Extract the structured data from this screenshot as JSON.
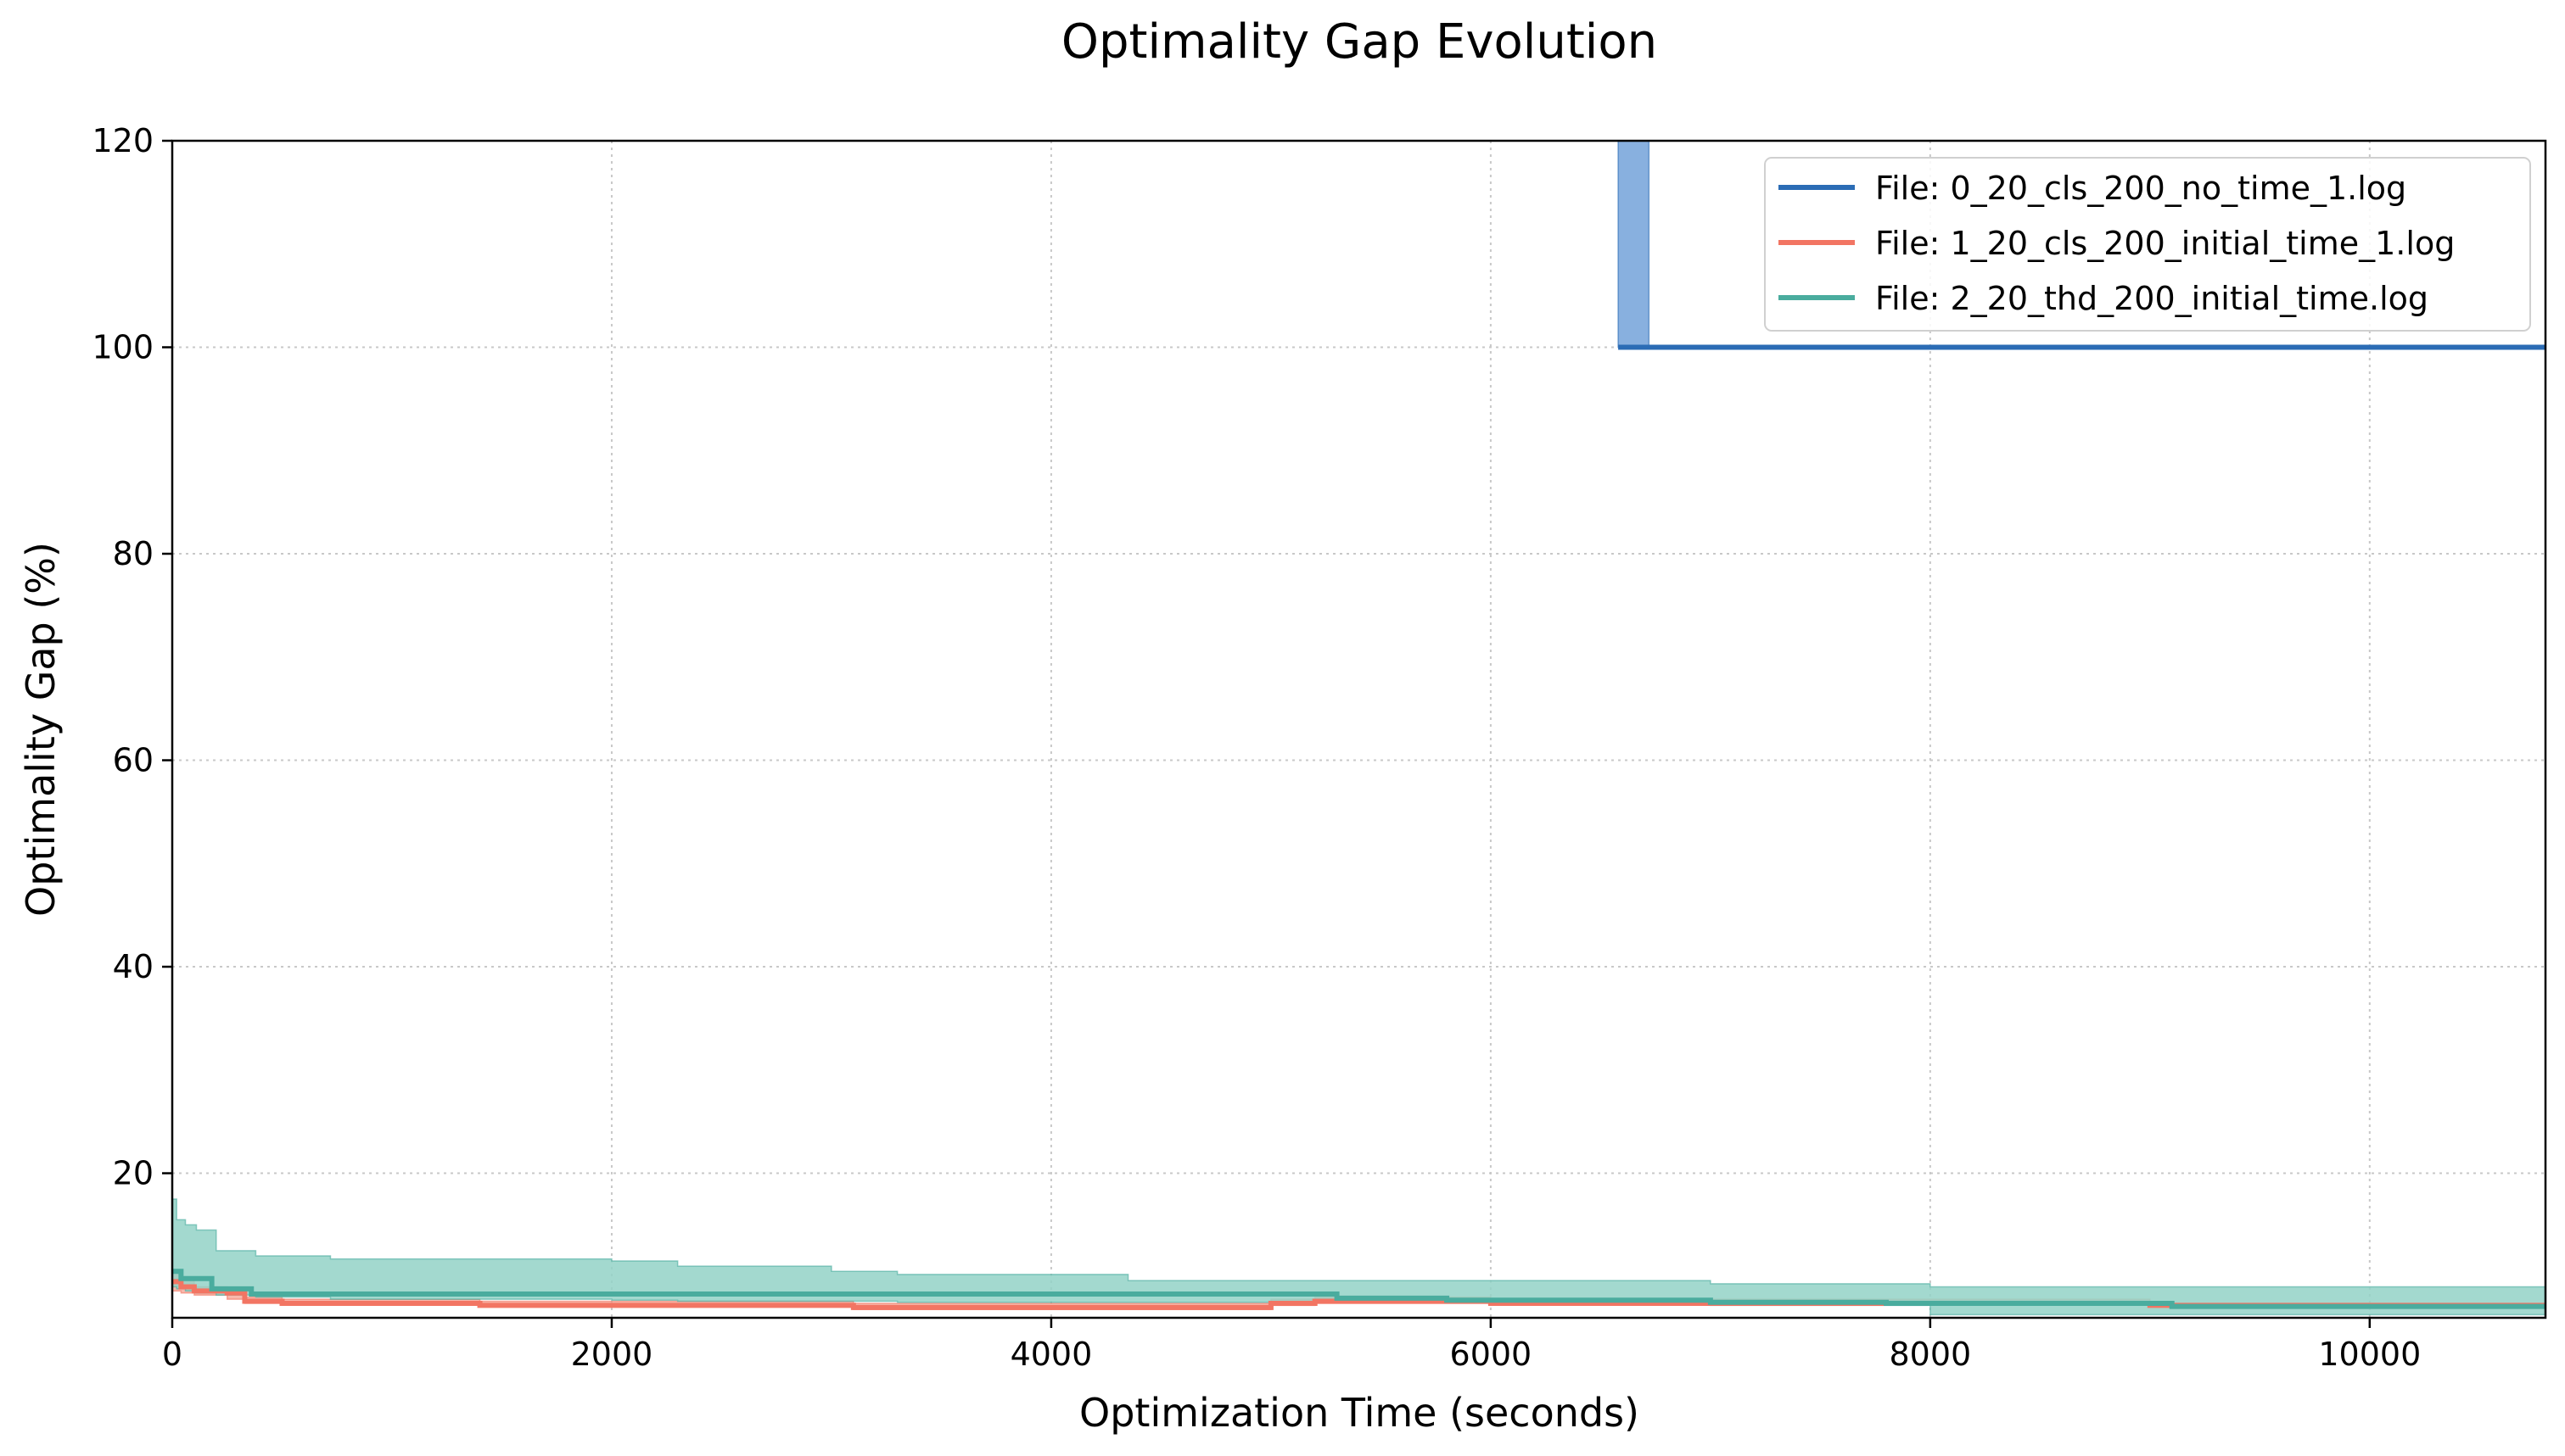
{
  "chart_data": {
    "type": "line",
    "title": "Optimality Gap Evolution",
    "xlabel": "Optimization Time (seconds)",
    "ylabel": "Optimality Gap (%)",
    "xlim": [
      0,
      10800
    ],
    "ylim": [
      6,
      120
    ],
    "x_ticks": [
      0,
      2000,
      4000,
      6000,
      8000,
      10000
    ],
    "x_tick_labels": [
      "0",
      "2000",
      "4000",
      "6000",
      "8000",
      "10000"
    ],
    "y_ticks": [
      20,
      40,
      60,
      80,
      100,
      120
    ],
    "y_tick_labels": [
      "20",
      "40",
      "60",
      "80",
      "100",
      "120"
    ],
    "grid": true,
    "legend_position": "top-right",
    "series": [
      {
        "name": "File: 0_20_cls_200_no_time_1.log",
        "color": "#2b6cb5",
        "fill_color": "#7ba7dc",
        "step_x": [
          6580,
          6720,
          10800
        ],
        "step_y": [
          100,
          100,
          100
        ],
        "band_x": [
          6580,
          6720
        ],
        "band_lower": [
          100,
          100
        ],
        "band_upper": [
          120,
          120
        ]
      },
      {
        "name": "File: 1_20_cls_200_initial_time_1.log",
        "color": "#f27563",
        "fill_color": "#f5a090",
        "step_x": [
          0,
          40,
          100,
          250,
          330,
          500,
          800,
          1400,
          2000,
          3100,
          4400,
          5000,
          5200,
          6000,
          8000,
          9000,
          10800
        ],
        "step_y": [
          9.5,
          9.0,
          8.6,
          8.4,
          7.6,
          7.4,
          7.4,
          7.2,
          7.2,
          7.0,
          7.0,
          7.4,
          7.6,
          7.4,
          7.4,
          7.2,
          7.2
        ],
        "band_x": [
          0,
          40,
          100,
          250,
          330,
          500,
          1400,
          3100,
          5000,
          5200,
          6000,
          9000,
          10800
        ],
        "band_lower": [
          8.6,
          8.4,
          8.2,
          7.8,
          7.4,
          7.3,
          7.1,
          6.8,
          7.2,
          7.4,
          7.3,
          7.1,
          7.1
        ],
        "band_upper": [
          10.4,
          9.6,
          9.0,
          8.8,
          8.0,
          7.8,
          7.6,
          7.4,
          7.8,
          8.0,
          7.8,
          7.4,
          7.4
        ]
      },
      {
        "name": "File: 2_20_thd_200_initial_time.log",
        "color": "#4aac9e",
        "fill_color": "#93d2c7",
        "step_x": [
          0,
          40,
          180,
          360,
          2000,
          4800,
          5300,
          5800,
          7000,
          7800,
          9100,
          10800
        ],
        "step_y": [
          10.5,
          9.8,
          8.8,
          8.3,
          8.3,
          8.3,
          7.9,
          7.7,
          7.5,
          7.4,
          7.1,
          7.1
        ],
        "band_x": [
          0,
          20,
          60,
          110,
          200,
          380,
          720,
          2000,
          2300,
          3000,
          3300,
          4350,
          7000,
          8000,
          9000,
          10800
        ],
        "band_lower": [
          9.0,
          8.8,
          8.6,
          8.4,
          8.2,
          8.0,
          7.8,
          7.7,
          7.6,
          7.6,
          7.5,
          7.5,
          7.2,
          6.3,
          6.3,
          6.3
        ],
        "band_upper": [
          17.5,
          15.5,
          15.0,
          14.5,
          12.5,
          12.0,
          11.7,
          11.5,
          11.0,
          10.5,
          10.2,
          9.6,
          9.3,
          9.0,
          9.0,
          8.8
        ]
      }
    ]
  }
}
